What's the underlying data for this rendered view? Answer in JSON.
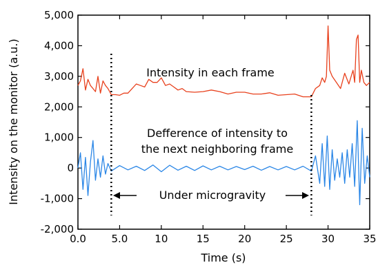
{
  "chart_data": {
    "type": "line",
    "xlabel": "Time (s)",
    "ylabel": "Intensity on the monitor (a.u.)",
    "xlim": [
      0,
      35
    ],
    "ylim": [
      -2000,
      5000
    ],
    "x_ticks": [
      0,
      5,
      10,
      15,
      20,
      25,
      30,
      35
    ],
    "x_tick_labels": [
      "0.0",
      "5.0",
      "10",
      "15",
      "20",
      "25",
      "30",
      "35"
    ],
    "y_ticks": [
      -2000,
      -1000,
      0,
      1000,
      2000,
      3000,
      4000,
      5000
    ],
    "y_tick_labels": [
      "-2,000",
      "-1,000",
      "0",
      "1,000",
      "2,000",
      "3,000",
      "4,000",
      "5,000"
    ],
    "grid": false,
    "series": [
      {
        "color": "#e8401c",
        "x": [
          0,
          0.3,
          0.6,
          0.9,
          1.2,
          1.5,
          1.8,
          2.1,
          2.4,
          2.7,
          3.0,
          3.3,
          3.6,
          4.0,
          4.5,
          5.0,
          5.5,
          6.0,
          6.5,
          7.0,
          7.5,
          8.0,
          8.5,
          9.0,
          9.5,
          10.0,
          10.5,
          11.0,
          11.5,
          12.0,
          12.5,
          13.0,
          14.0,
          15.0,
          16.0,
          17.0,
          18.0,
          19.0,
          20.0,
          21.0,
          22.0,
          23.0,
          24.0,
          25.0,
          26.0,
          27.0,
          28.0,
          28.5,
          29.0,
          29.3,
          29.6,
          29.8,
          30.0,
          30.2,
          30.5,
          31.0,
          31.5,
          32.0,
          32.5,
          33.0,
          33.2,
          33.4,
          33.6,
          33.8,
          34.0,
          34.3,
          34.6,
          35.0
        ],
        "y": [
          2700,
          2850,
          3250,
          2550,
          2900,
          2700,
          2600,
          2500,
          3000,
          2450,
          2850,
          2700,
          2600,
          2400,
          2400,
          2380,
          2450,
          2450,
          2600,
          2750,
          2700,
          2650,
          2900,
          2800,
          2800,
          2950,
          2700,
          2750,
          2650,
          2550,
          2600,
          2500,
          2480,
          2500,
          2550,
          2500,
          2420,
          2480,
          2480,
          2420,
          2420,
          2460,
          2380,
          2400,
          2420,
          2330,
          2330,
          2600,
          2700,
          2950,
          2800,
          3000,
          4650,
          3200,
          3000,
          2800,
          2600,
          3100,
          2750,
          3200,
          2800,
          4200,
          4350,
          2800,
          3200,
          2800,
          2700,
          2800
        ]
      },
      {
        "color": "#2a86e6",
        "x": [
          0,
          0.3,
          0.6,
          0.9,
          1.2,
          1.5,
          1.8,
          2.1,
          2.4,
          2.7,
          3.0,
          3.3,
          3.6,
          4.0,
          5.0,
          6.0,
          7.0,
          8.0,
          9.0,
          10.0,
          11.0,
          12.0,
          13.0,
          14.0,
          15.0,
          16.0,
          17.0,
          18.0,
          19.0,
          20.0,
          21.0,
          22.0,
          23.0,
          24.0,
          25.0,
          26.0,
          27.0,
          28.0,
          28.5,
          29.0,
          29.3,
          29.6,
          29.9,
          30.2,
          30.5,
          30.8,
          31.1,
          31.4,
          31.7,
          32.0,
          32.3,
          32.6,
          32.9,
          33.2,
          33.5,
          33.8,
          34.1,
          34.4,
          34.7,
          35.0
        ],
        "y": [
          0,
          500,
          -700,
          350,
          -900,
          200,
          900,
          -400,
          300,
          -300,
          400,
          -200,
          150,
          -100,
          80,
          -60,
          60,
          -80,
          100,
          -120,
          90,
          -70,
          60,
          -80,
          70,
          -60,
          60,
          -60,
          50,
          -50,
          60,
          -70,
          50,
          -60,
          50,
          -60,
          60,
          -100,
          400,
          -500,
          800,
          -600,
          1050,
          -700,
          600,
          -400,
          300,
          -300,
          500,
          -500,
          600,
          -300,
          800,
          -600,
          1550,
          -1200,
          1300,
          -500,
          400,
          -300
        ]
      }
    ],
    "annotations": {
      "intensity_label": "Intensity in each frame",
      "difference_label_line1": "Defference of intensity to",
      "difference_label_line2": "the next neighboring frame",
      "microgravity_label": "Under microgravity",
      "microgravity_start": 4.0,
      "microgravity_end": 28.0
    }
  }
}
